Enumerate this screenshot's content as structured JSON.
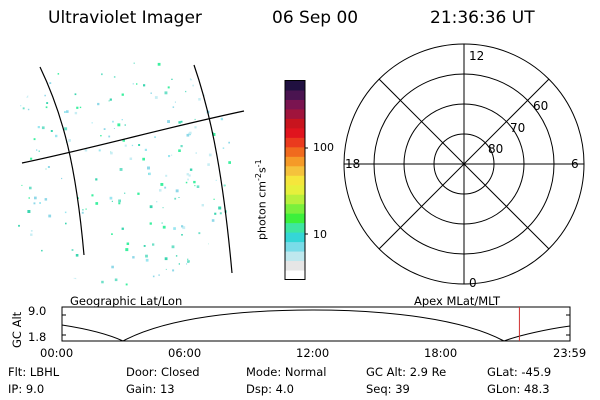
{
  "header": {
    "instrument": "Ultraviolet Imager",
    "date": "06 Sep 00",
    "time": "21:36:36 UT"
  },
  "colorbar": {
    "unit_label": "photon cm",
    "unit_sup1": "-2",
    "unit_mid": "s",
    "unit_sup2": "-1",
    "tick_high": "100",
    "tick_low": "10",
    "colors": [
      "#ffffff",
      "#e6e6e6",
      "#bfe8ee",
      "#7adce8",
      "#35d6d6",
      "#3ee6a0",
      "#3cf03c",
      "#7af03c",
      "#b8f03c",
      "#e6f03c",
      "#f5e63c",
      "#f5c23c",
      "#f59a28",
      "#f06a1e",
      "#ea3a1e",
      "#e0141e",
      "#c8141e",
      "#a0143c",
      "#7a1450",
      "#4a1450",
      "#201040"
    ]
  },
  "polar": {
    "mlt_top": "12",
    "mlt_bottom": "0",
    "mlt_left": "18",
    "mlt_right": "6",
    "lat_60": "60",
    "lat_70": "70",
    "lat_80": "80"
  },
  "orbit": {
    "left_title": "Geographic Lat/Lon",
    "right_title": "Apex  MLat/MLT",
    "ylabel": "GC Alt",
    "ytick_top": "9.0",
    "ytick_bottom": "1.8",
    "xticks": [
      "00:00",
      "06:00",
      "12:00",
      "18:00",
      "23:59"
    ],
    "current_time_hours": 21.61,
    "marker_color": "#d03030"
  },
  "footer": {
    "filter": "Flt: LBHL",
    "ip": "IP:  9.0",
    "door": "Door: Closed",
    "gain": "Gain: 13",
    "mode": "Mode: Normal",
    "dsp": "Dsp:    4.0",
    "gc_alt": "GC Alt: 2.9 Re",
    "seq": "Seq: 39",
    "glat": "GLat: -45.9",
    "glon": "GLon:  48.3"
  }
}
